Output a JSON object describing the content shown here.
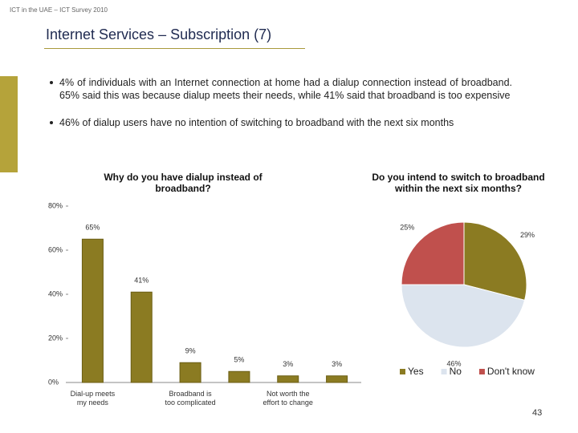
{
  "header": "ICT in the UAE – ICT Survey 2010",
  "title": "Internet Services – Subscription (7)",
  "bullets": [
    "4% of individuals with an Internet connection at home had a dialup connection instead of broadband.  65% said this was because dialup meets their needs, while 41% said that broadband is too expensive",
    "46% of dialup users have no intention of switching to broadband with the next six months"
  ],
  "page_number": "43",
  "chart_data": [
    {
      "type": "bar",
      "title": "Why do you have dialup instead of broadband?",
      "categories": [
        "Dial-up meets my needs",
        null,
        "Broadband is too complicated",
        null,
        "Not worth the effort to change",
        null
      ],
      "values": [
        65,
        41,
        9,
        5,
        3,
        3
      ],
      "value_labels": [
        "65%",
        "41%",
        "9%",
        "5%",
        "3%",
        "3%"
      ],
      "color": "#8b7b22",
      "ylim": [
        0,
        80
      ],
      "yticks": [
        {
          "value": 0,
          "label": "0%"
        },
        {
          "value": 20,
          "label": "20%"
        },
        {
          "value": 40,
          "label": "40%"
        },
        {
          "value": 60,
          "label": "60%"
        },
        {
          "value": 80,
          "label": "80%"
        }
      ],
      "grid": false
    },
    {
      "type": "pie",
      "title": "Do you intend to switch to broadband within the next six months?",
      "categories": [
        "Yes",
        "No",
        "Don't know"
      ],
      "values": [
        29,
        46,
        25
      ],
      "value_labels": [
        "29%",
        "46%",
        "25%"
      ],
      "colors": [
        "#8b7b22",
        "#dce4ee",
        "#c0504d"
      ],
      "legend": "bottom"
    }
  ]
}
